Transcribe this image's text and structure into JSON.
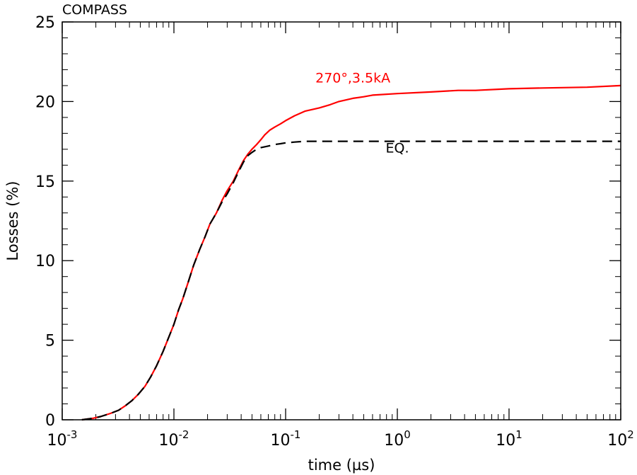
{
  "chart_data": {
    "type": "line",
    "title": "COMPASS",
    "xlabel": "time (µs)",
    "ylabel": "Losses (%)",
    "xscale": "log",
    "xlim": [
      0.001,
      100
    ],
    "ylim": [
      0,
      25
    ],
    "grid": false,
    "x_ticks": [
      {
        "value": 0.001,
        "base": "10",
        "exp": "-3"
      },
      {
        "value": 0.01,
        "base": "10",
        "exp": "-2"
      },
      {
        "value": 0.1,
        "base": "10",
        "exp": "-1"
      },
      {
        "value": 1,
        "base": "10",
        "exp": "0"
      },
      {
        "value": 10,
        "base": "10",
        "exp": "1"
      },
      {
        "value": 100,
        "base": "10",
        "exp": "2"
      }
    ],
    "y_ticks": [
      {
        "value": 0,
        "label": "0"
      },
      {
        "value": 5,
        "label": "5"
      },
      {
        "value": 10,
        "label": "10"
      },
      {
        "value": 15,
        "label": "15"
      },
      {
        "value": 20,
        "label": "20"
      },
      {
        "value": 25,
        "label": "25"
      }
    ],
    "series": [
      {
        "name": "270°,3.5kA",
        "color": "#ff0000",
        "style": "solid",
        "label_at": [
          0.4,
          21.2
        ],
        "x": [
          0.0015,
          0.0019,
          0.0022,
          0.0027,
          0.0032,
          0.0037,
          0.0042,
          0.0048,
          0.0055,
          0.0062,
          0.007,
          0.008,
          0.009,
          0.01,
          0.011,
          0.012,
          0.0135,
          0.015,
          0.017,
          0.019,
          0.021,
          0.024,
          0.027,
          0.03,
          0.034,
          0.038,
          0.042,
          0.046,
          0.05,
          0.055,
          0.06,
          0.065,
          0.072,
          0.08,
          0.09,
          0.1,
          0.12,
          0.15,
          0.2,
          0.25,
          0.3,
          0.4,
          0.5,
          0.6,
          1.0,
          2.0,
          3.5,
          5.0,
          10.0,
          20.0,
          50.0,
          100.0
        ],
        "y": [
          0.0,
          0.1,
          0.2,
          0.4,
          0.6,
          0.9,
          1.2,
          1.6,
          2.1,
          2.7,
          3.4,
          4.3,
          5.2,
          6.0,
          6.9,
          7.6,
          8.7,
          9.7,
          10.7,
          11.5,
          12.3,
          13.0,
          13.8,
          14.4,
          15.0,
          15.7,
          16.3,
          16.7,
          17.0,
          17.3,
          17.6,
          17.9,
          18.2,
          18.4,
          18.6,
          18.8,
          19.1,
          19.4,
          19.6,
          19.8,
          20.0,
          20.2,
          20.3,
          20.4,
          20.5,
          20.6,
          20.7,
          20.7,
          20.8,
          20.85,
          20.9,
          21.0
        ]
      },
      {
        "name": "EQ.",
        "color": "#000000",
        "style": "dashed",
        "label_at": [
          1.0,
          16.8
        ],
        "x": [
          0.0015,
          0.0019,
          0.0022,
          0.0027,
          0.0032,
          0.0037,
          0.0042,
          0.0048,
          0.0055,
          0.0062,
          0.007,
          0.008,
          0.009,
          0.01,
          0.011,
          0.012,
          0.0135,
          0.015,
          0.017,
          0.019,
          0.021,
          0.024,
          0.027,
          0.03,
          0.034,
          0.038,
          0.042,
          0.046,
          0.05,
          0.055,
          0.06,
          0.07,
          0.08,
          0.09,
          0.1,
          0.12,
          0.15,
          0.2,
          0.5,
          1.0,
          10.0,
          100.0
        ],
        "y": [
          0.0,
          0.1,
          0.2,
          0.4,
          0.6,
          0.9,
          1.2,
          1.6,
          2.1,
          2.7,
          3.4,
          4.3,
          5.2,
          6.0,
          6.9,
          7.6,
          8.7,
          9.7,
          10.7,
          11.5,
          12.3,
          13.0,
          13.7,
          14.2,
          14.9,
          15.6,
          16.2,
          16.6,
          16.8,
          17.0,
          17.1,
          17.2,
          17.3,
          17.35,
          17.4,
          17.45,
          17.5,
          17.5,
          17.5,
          17.5,
          17.5,
          17.5
        ]
      }
    ]
  }
}
